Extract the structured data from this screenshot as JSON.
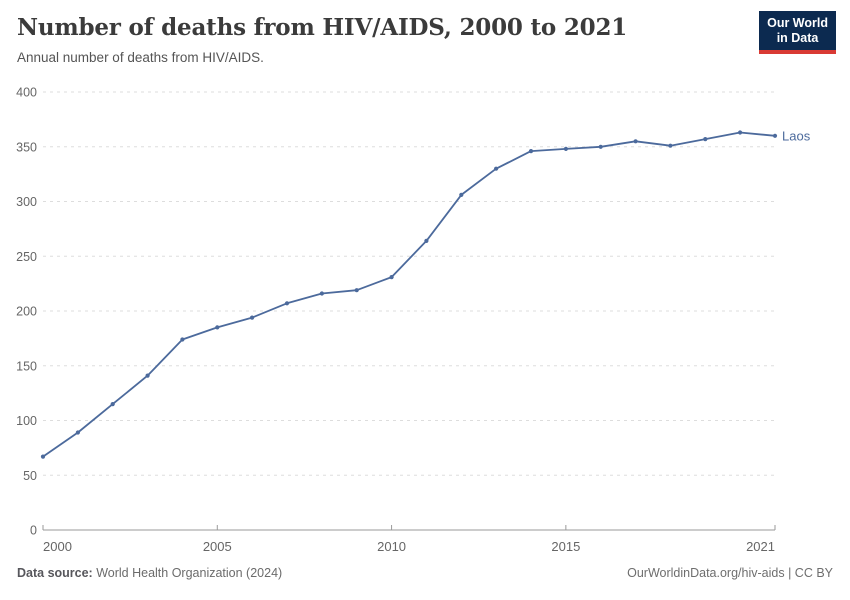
{
  "header": {
    "title": "Number of deaths from HIV/AIDS, 2000 to 2021",
    "subtitle": "Annual number of deaths from HIV/AIDS."
  },
  "logo": {
    "line1": "Our World",
    "line2": "in Data",
    "bg_color": "#0c2a50",
    "accent_color": "#d93a34"
  },
  "chart_data": {
    "type": "line",
    "title": "Number of deaths from HIV/AIDS, 2000 to 2021",
    "subtitle": "Annual number of deaths from HIV/AIDS.",
    "x": [
      2000,
      2001,
      2002,
      2003,
      2004,
      2005,
      2006,
      2007,
      2008,
      2009,
      2010,
      2011,
      2012,
      2013,
      2014,
      2015,
      2016,
      2017,
      2018,
      2019,
      2020,
      2021
    ],
    "series": [
      {
        "name": "Laos",
        "color": "#4C6A9C",
        "values": [
          67,
          89,
          115,
          141,
          174,
          185,
          194,
          207,
          216,
          219,
          231,
          264,
          306,
          330,
          346,
          348,
          350,
          355,
          351,
          357,
          363,
          360
        ]
      }
    ],
    "xlim": [
      2000,
      2021
    ],
    "ylim": [
      0,
      400
    ],
    "xticks": [
      2000,
      2005,
      2010,
      2015,
      2021
    ],
    "yticks": [
      0,
      50,
      100,
      150,
      200,
      250,
      300,
      350,
      400
    ],
    "grid": "horizontal-dashed",
    "legend": "end-of-line-label",
    "xlabel": "",
    "ylabel": ""
  },
  "footer": {
    "source_label": "Data source:",
    "source_value": " World Health Organization (2024)",
    "right_text": "OurWorldinData.org/hiv-aids | CC BY"
  },
  "colors": {
    "line": "#4C6A9C",
    "grid": "#dddddd",
    "axis": "#9a9a9a",
    "tick_text": "#666666",
    "title_text": "#3b3b3b",
    "subtitle_text": "#555555"
  }
}
